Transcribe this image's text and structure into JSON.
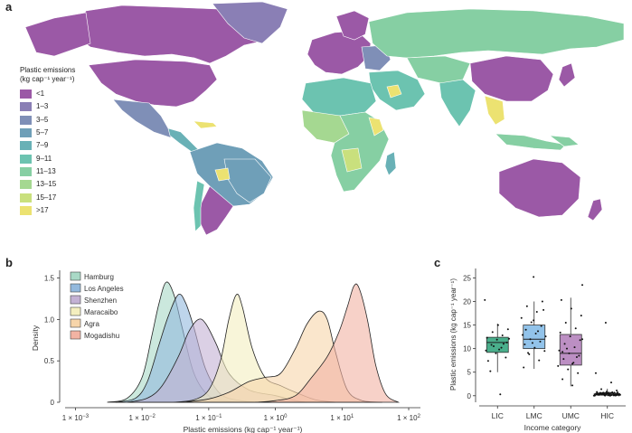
{
  "panels": {
    "a": "a",
    "b": "b",
    "c": "c"
  },
  "map": {
    "legend_title_line1": "Plastic emissions",
    "legend_title_line2": "(kg cap⁻¹ year⁻¹)",
    "bins": [
      {
        "label": "<1",
        "color": "#9b59a6"
      },
      {
        "label": "1–3",
        "color": "#8a7fb5"
      },
      {
        "label": "3–5",
        "color": "#7f8fb7"
      },
      {
        "label": "5–7",
        "color": "#6f9fb8"
      },
      {
        "label": "7–9",
        "color": "#69b1b6"
      },
      {
        "label": "9–11",
        "color": "#6cc3b0"
      },
      {
        "label": "11–13",
        "color": "#86cfa3"
      },
      {
        "label": "13–15",
        "color": "#a5d891"
      },
      {
        "label": "15–17",
        "color": "#c9e07d"
      },
      {
        "label": ">17",
        "color": "#ece271"
      }
    ]
  },
  "chart_data": [
    {
      "type": "area",
      "panel": "b",
      "xlabel": "Plastic emissions (kg cap⁻¹ year⁻¹)",
      "ylabel": "Density",
      "xscale": "log",
      "xlim": [
        0.0007,
        150
      ],
      "ylim": [
        0,
        1.55
      ],
      "xticks": [
        {
          "v": 0.001,
          "base": "1 × 10",
          "exp": "−3"
        },
        {
          "v": 0.01,
          "base": "1 × 10",
          "exp": "−2"
        },
        {
          "v": 0.1,
          "base": "1 × 10",
          "exp": "−1"
        },
        {
          "v": 1,
          "base": "1 × 10",
          "exp": "0"
        },
        {
          "v": 10,
          "base": "1 × 10",
          "exp": "1"
        },
        {
          "v": 100,
          "base": "1 × 10",
          "exp": "2"
        }
      ],
      "yticks": [
        "0",
        "0.5",
        "1.0",
        "1.5"
      ],
      "legend_position": "top-left",
      "series": [
        {
          "name": "Hamburg",
          "color": "#a9d9c6",
          "points": [
            [
              0.003,
              0
            ],
            [
              0.006,
              0.05
            ],
            [
              0.01,
              0.3
            ],
            [
              0.014,
              0.8
            ],
            [
              0.018,
              1.2
            ],
            [
              0.023,
              1.45
            ],
            [
              0.03,
              1.3
            ],
            [
              0.04,
              0.9
            ],
            [
              0.06,
              0.35
            ],
            [
              0.1,
              0.08
            ],
            [
              0.2,
              0.01
            ],
            [
              0.4,
              0
            ]
          ]
        },
        {
          "name": "Los Angeles",
          "color": "#93b9dd",
          "points": [
            [
              0.004,
              0
            ],
            [
              0.008,
              0.05
            ],
            [
              0.012,
              0.25
            ],
            [
              0.018,
              0.7
            ],
            [
              0.025,
              1.05
            ],
            [
              0.035,
              1.3
            ],
            [
              0.045,
              1.2
            ],
            [
              0.06,
              0.9
            ],
            [
              0.09,
              0.4
            ],
            [
              0.15,
              0.1
            ],
            [
              0.3,
              0.02
            ],
            [
              0.6,
              0
            ]
          ]
        },
        {
          "name": "Shenzhen",
          "color": "#c3b1d4",
          "points": [
            [
              0.006,
              0
            ],
            [
              0.012,
              0.05
            ],
            [
              0.02,
              0.2
            ],
            [
              0.035,
              0.55
            ],
            [
              0.05,
              0.85
            ],
            [
              0.07,
              1.0
            ],
            [
              0.09,
              0.95
            ],
            [
              0.13,
              0.7
            ],
            [
              0.2,
              0.35
            ],
            [
              0.4,
              0.15
            ],
            [
              1,
              0.08
            ],
            [
              2,
              0.02
            ],
            [
              3,
              0
            ]
          ]
        },
        {
          "name": "Maracaibo",
          "color": "#f4efbf",
          "points": [
            [
              0.03,
              0
            ],
            [
              0.06,
              0.03
            ],
            [
              0.1,
              0.15
            ],
            [
              0.15,
              0.5
            ],
            [
              0.2,
              1.0
            ],
            [
              0.26,
              1.3
            ],
            [
              0.32,
              1.15
            ],
            [
              0.45,
              0.65
            ],
            [
              0.7,
              0.3
            ],
            [
              1.2,
              0.2
            ],
            [
              2,
              0.12
            ],
            [
              4,
              0.03
            ],
            [
              8,
              0
            ]
          ]
        },
        {
          "name": "Agra",
          "color": "#f7d5aa",
          "points": [
            [
              0.04,
              0
            ],
            [
              0.1,
              0.04
            ],
            [
              0.2,
              0.12
            ],
            [
              0.4,
              0.25
            ],
            [
              0.7,
              0.3
            ],
            [
              1.2,
              0.35
            ],
            [
              2,
              0.65
            ],
            [
              3,
              0.95
            ],
            [
              4.5,
              1.1
            ],
            [
              6,
              1.0
            ],
            [
              8,
              0.6
            ],
            [
              12,
              0.15
            ],
            [
              20,
              0.02
            ],
            [
              40,
              0
            ]
          ]
        },
        {
          "name": "Mogadishu",
          "color": "#f2b3a3",
          "points": [
            [
              0.5,
              0
            ],
            [
              1,
              0.02
            ],
            [
              2,
              0.08
            ],
            [
              3.5,
              0.3
            ],
            [
              6,
              0.55
            ],
            [
              9,
              0.85
            ],
            [
              12,
              1.15
            ],
            [
              15,
              1.4
            ],
            [
              18,
              1.38
            ],
            [
              24,
              1.0
            ],
            [
              32,
              0.45
            ],
            [
              45,
              0.1
            ],
            [
              70,
              0
            ]
          ]
        }
      ]
    },
    {
      "type": "box",
      "panel": "c",
      "xlabel": "Income category",
      "ylabel": "Plastic emissions (kg cap⁻¹ year⁻¹)",
      "ylim": [
        -1,
        27
      ],
      "yticks": [
        0,
        5,
        10,
        15,
        20,
        25
      ],
      "categories": [
        {
          "name": "LIC",
          "color": "#2aa178",
          "q1": 9.2,
          "median": 11.3,
          "q3": 12.4,
          "whisker_low": 5.0,
          "whisker_high": 15.3,
          "points": [
            20.3,
            0.3,
            5.2,
            8.1,
            9.0,
            9.6,
            10.2,
            10.8,
            11.3,
            11.9,
            12.3,
            12.8,
            13.5,
            14.1,
            15.0,
            7.4,
            11.0,
            10.5,
            12.1,
            9.8
          ]
        },
        {
          "name": "LMC",
          "color": "#7fb8e6",
          "q1": 10.0,
          "median": 12.0,
          "q3": 15.0,
          "whisker_low": 5.7,
          "whisker_high": 20.0,
          "points": [
            25.2,
            6.0,
            7.5,
            8.8,
            9.5,
            10.2,
            10.9,
            11.5,
            12.0,
            12.6,
            13.2,
            14.0,
            14.8,
            15.6,
            16.5,
            17.8,
            19.0,
            20.0,
            11.2,
            12.9,
            13.7,
            9.1,
            18.2,
            16.0
          ]
        },
        {
          "name": "UMC",
          "color": "#b07bb9",
          "q1": 6.5,
          "median": 9.0,
          "q3": 13.0,
          "whisker_low": 2.0,
          "whisker_high": 20.8,
          "points": [
            23.5,
            2.2,
            3.5,
            4.8,
            5.6,
            6.3,
            7.0,
            7.8,
            8.5,
            9.0,
            9.6,
            10.3,
            11.0,
            11.8,
            12.6,
            13.4,
            14.3,
            15.5,
            17.0,
            18.5,
            20.3,
            8.2,
            10.0,
            12.0,
            6.8,
            9.3
          ]
        },
        {
          "name": "HIC",
          "color": "#333333",
          "q1": 0.1,
          "median": 0.3,
          "q3": 0.6,
          "whisker_low": 0.0,
          "whisker_high": 1.5,
          "points": [
            15.5,
            4.8,
            2.8,
            1.4,
            1.1,
            0.9,
            0.8,
            0.7,
            0.6,
            0.5,
            0.5,
            0.4,
            0.4,
            0.3,
            0.3,
            0.2,
            0.2,
            0.1,
            0.1,
            0.0,
            0.0,
            0.6,
            0.3,
            0.2
          ]
        }
      ]
    }
  ]
}
